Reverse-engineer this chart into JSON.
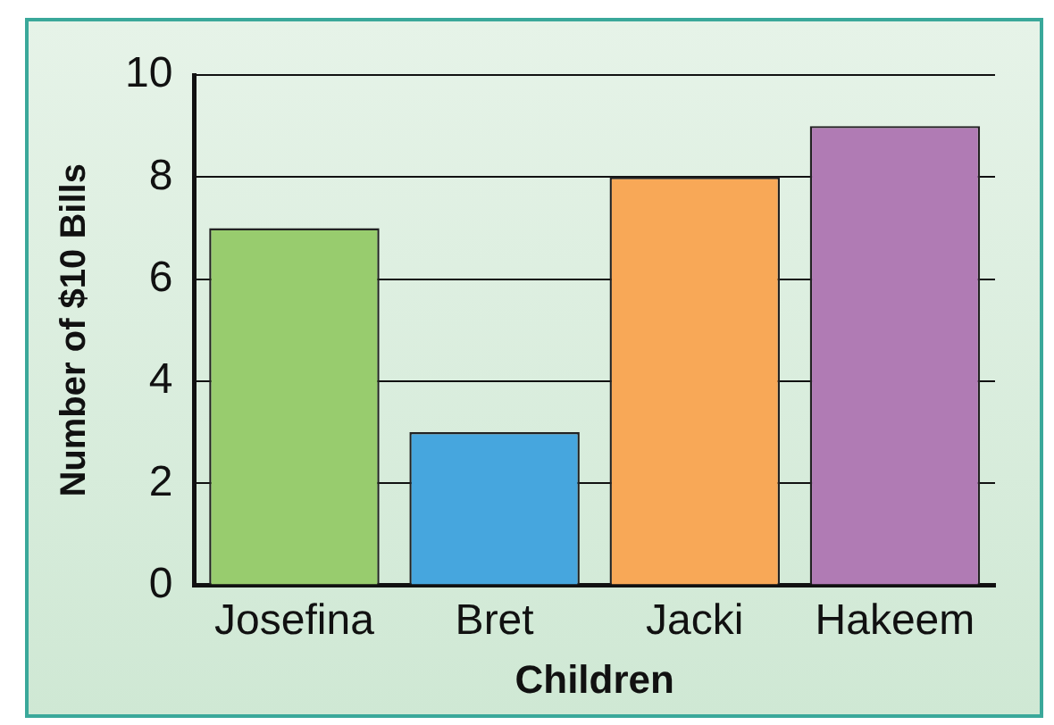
{
  "chart_data": {
    "type": "bar",
    "xlabel": "Children",
    "ylabel": "Number of $10 Bills",
    "categories": [
      "Josefina",
      "Bret",
      "Jacki",
      "Hakeem"
    ],
    "values": [
      7,
      3,
      8,
      9
    ],
    "colors": [
      "#98cc6e",
      "#46a6de",
      "#f8a857",
      "#b07bb4"
    ],
    "ylim": [
      0,
      10
    ],
    "yticks": [
      0,
      2,
      4,
      6,
      8,
      10
    ],
    "grid": "y",
    "legend": false
  }
}
